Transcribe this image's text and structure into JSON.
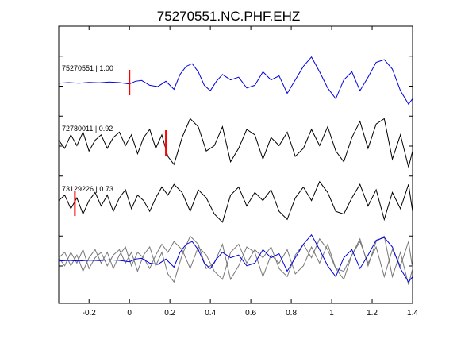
{
  "chart_data": {
    "type": "line",
    "title": "75270551.NC.PHF.EHZ",
    "xlabel": "",
    "ylabel": "",
    "xlim": [
      -0.35,
      1.4
    ],
    "xticks": [
      -0.2,
      0,
      0.2,
      0.4,
      0.6,
      0.8,
      1,
      1.2,
      1.4
    ],
    "xtick_labels": [
      "-0.2",
      "0",
      "0.2",
      "0.4",
      "0.6",
      "0.8",
      "1",
      "1.2",
      "1.4"
    ],
    "grid": false,
    "colors": {
      "reference": "#0000dd",
      "other": "#000000",
      "overlay_other": "#777777",
      "pick": "#ff0000"
    },
    "traces": [
      {
        "label": "75270551 | 1.00",
        "pick_x": 0.0,
        "color": "#0000dd",
        "x": [
          -0.35,
          -0.3,
          -0.25,
          -0.2,
          -0.15,
          -0.1,
          -0.05,
          0.0,
          0.03,
          0.06,
          0.1,
          0.14,
          0.18,
          0.22,
          0.25,
          0.28,
          0.31,
          0.34,
          0.37,
          0.4,
          0.43,
          0.46,
          0.5,
          0.54,
          0.58,
          0.62,
          0.66,
          0.7,
          0.74,
          0.78,
          0.82,
          0.86,
          0.9,
          0.94,
          0.98,
          1.02,
          1.06,
          1.1,
          1.14,
          1.18,
          1.22,
          1.26,
          1.3,
          1.34,
          1.38,
          1.4
        ],
        "y": [
          -0.02,
          0.0,
          -0.02,
          0.01,
          -0.01,
          0.02,
          0.0,
          -0.05,
          0.05,
          0.08,
          -0.1,
          -0.15,
          0.05,
          -0.25,
          0.3,
          0.6,
          0.7,
          0.4,
          -0.1,
          -0.3,
          0.05,
          0.3,
          0.1,
          0.2,
          -0.2,
          -0.1,
          0.4,
          0.1,
          0.25,
          -0.4,
          0.1,
          0.6,
          0.95,
          0.4,
          -0.2,
          -0.6,
          0.1,
          0.4,
          -0.3,
          0.2,
          0.75,
          0.85,
          0.5,
          -0.3,
          -0.8,
          -0.6
        ]
      },
      {
        "label": "72780011 | 0.92",
        "pick_x": 0.18,
        "color": "#000000",
        "x": [
          -0.35,
          -0.32,
          -0.29,
          -0.26,
          -0.23,
          -0.2,
          -0.17,
          -0.14,
          -0.11,
          -0.08,
          -0.05,
          -0.02,
          0.01,
          0.04,
          0.07,
          0.1,
          0.13,
          0.16,
          0.19,
          0.22,
          0.26,
          0.3,
          0.34,
          0.38,
          0.42,
          0.46,
          0.5,
          0.54,
          0.58,
          0.62,
          0.66,
          0.7,
          0.74,
          0.78,
          0.82,
          0.86,
          0.9,
          0.94,
          0.98,
          1.02,
          1.06,
          1.1,
          1.14,
          1.18,
          1.22,
          1.26,
          1.3,
          1.34,
          1.38,
          1.4
        ],
        "y": [
          0.1,
          -0.2,
          0.3,
          -0.1,
          0.4,
          -0.3,
          0.1,
          0.3,
          -0.2,
          0.2,
          0.4,
          -0.1,
          0.3,
          -0.4,
          0.2,
          0.5,
          -0.2,
          0.3,
          -0.5,
          -0.8,
          0.2,
          0.9,
          0.6,
          -0.3,
          -0.1,
          0.6,
          -0.7,
          -0.2,
          0.5,
          0.3,
          -0.6,
          0.2,
          -0.1,
          0.4,
          -0.5,
          -0.2,
          0.5,
          -0.1,
          0.6,
          -0.3,
          -0.7,
          0.2,
          0.8,
          -0.2,
          0.7,
          0.9,
          -0.6,
          0.3,
          -0.9,
          -0.3
        ]
      },
      {
        "label": "73129226 | 0.73",
        "pick_x": -0.27,
        "color": "#000000",
        "x": [
          -0.35,
          -0.32,
          -0.29,
          -0.26,
          -0.23,
          -0.2,
          -0.17,
          -0.14,
          -0.11,
          -0.08,
          -0.05,
          -0.02,
          0.01,
          0.04,
          0.07,
          0.1,
          0.13,
          0.16,
          0.19,
          0.22,
          0.26,
          0.3,
          0.34,
          0.38,
          0.42,
          0.46,
          0.5,
          0.54,
          0.58,
          0.62,
          0.66,
          0.7,
          0.74,
          0.78,
          0.82,
          0.86,
          0.9,
          0.94,
          0.98,
          1.02,
          1.06,
          1.1,
          1.14,
          1.18,
          1.22,
          1.26,
          1.3,
          1.34,
          1.38,
          1.4
        ],
        "y": [
          0.1,
          0.3,
          -0.2,
          0.2,
          -0.4,
          0.1,
          0.4,
          -0.1,
          0.3,
          -0.3,
          0.2,
          0.5,
          -0.2,
          0.3,
          0.1,
          -0.3,
          0.2,
          0.6,
          0.3,
          0.7,
          0.4,
          -0.3,
          0.5,
          0.2,
          -0.4,
          -0.7,
          0.3,
          0.6,
          -0.1,
          0.4,
          0.1,
          0.5,
          -0.3,
          -0.6,
          0.2,
          0.6,
          0.1,
          0.8,
          0.4,
          -0.3,
          -0.4,
          0.2,
          0.7,
          -0.1,
          0.5,
          -0.6,
          0.4,
          -0.2,
          0.7,
          -0.3
        ]
      }
    ]
  }
}
